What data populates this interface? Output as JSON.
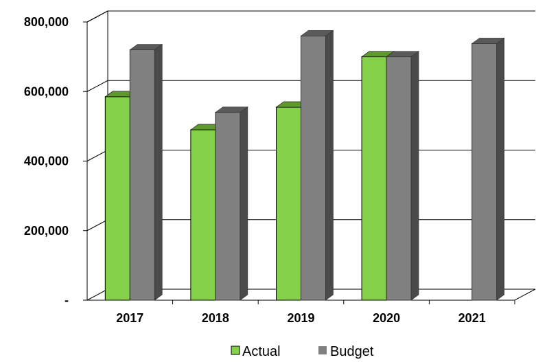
{
  "chart_data": {
    "type": "bar",
    "title": "",
    "xlabel": "",
    "ylabel": "",
    "categories": [
      "2017",
      "2018",
      "2019",
      "2020",
      "2021"
    ],
    "series": [
      {
        "name": "Actual",
        "values": [
          585000,
          490000,
          555000,
          700000,
          null
        ],
        "color": "#86d14a"
      },
      {
        "name": "Budget",
        "values": [
          720000,
          540000,
          760000,
          700000,
          738000
        ],
        "color": "#808080"
      }
    ],
    "ylim": [
      0,
      800000
    ],
    "yticks": [
      0,
      200000,
      400000,
      600000,
      800000
    ],
    "ytick_labels": [
      "-",
      "200,000",
      "400,000",
      "600,000",
      "800,000"
    ],
    "grid": true,
    "legend_position": "bottom",
    "style": "3d-clustered-column"
  }
}
